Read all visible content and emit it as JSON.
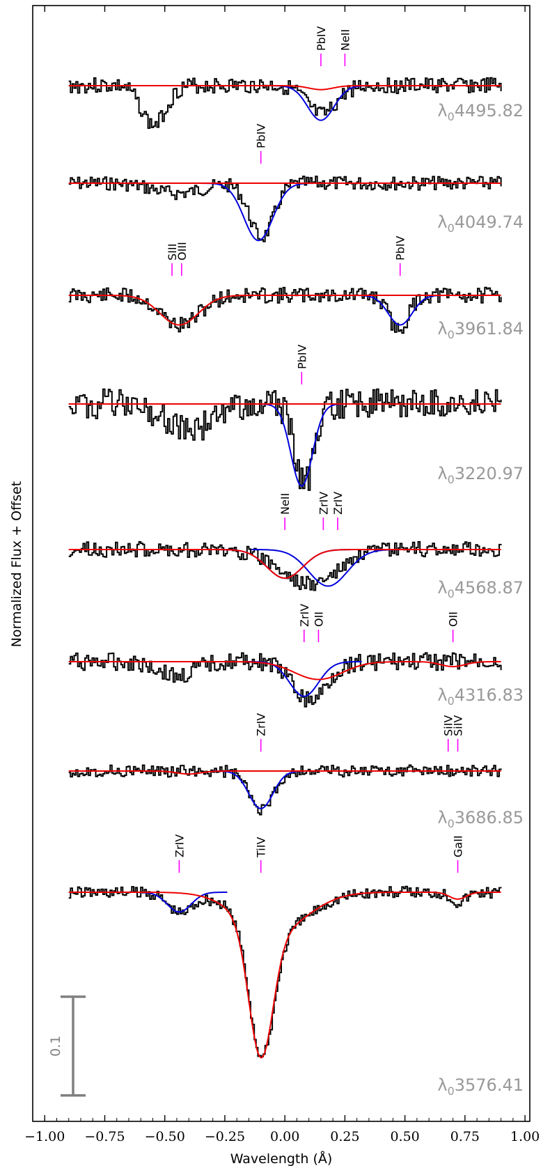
{
  "chart_data": {
    "type": "line",
    "xlabel": "Wavelength (Å)",
    "ylabel": "Normalized Flux + Offset",
    "xlim": [
      -1.05,
      1.02
    ],
    "x_ticks": [
      "−1.00",
      "−0.75",
      "−0.50",
      "−0.25",
      "0.00",
      "0.25",
      "0.50",
      "0.75",
      "1.00"
    ],
    "x_tick_values": [
      -1.0,
      -0.75,
      -0.5,
      -0.25,
      0.0,
      0.25,
      0.5,
      0.75,
      1.0
    ],
    "scale_bar_label": "0.1",
    "scale_bar_size": 0.1,
    "colors": {
      "observed": "#000000",
      "blend_fit": "#0000dd",
      "model": "#ee0000",
      "line_marker": "#ff00ff",
      "label_gray": "#999999",
      "scale_bar": "#808080"
    },
    "series": [
      {
        "label": "λ04495.82",
        "label_prefix": "λ",
        "label_sub": "0",
        "label_value": "4495.82",
        "markers": [
          {
            "ion": "PbIV",
            "x": 0.15
          },
          {
            "ion": "NeII",
            "x": 0.25
          }
        ],
        "model_components": [
          {
            "center": 0.15,
            "depth": 0.035,
            "sigma": 0.055,
            "color": "blue"
          }
        ],
        "red_dips": [
          {
            "center": 0.15,
            "depth": 0.004,
            "sigma": 0.05
          }
        ],
        "data_dips": [
          {
            "center": -0.55,
            "depth": 0.04,
            "sigma": 0.05
          },
          {
            "center": 0.15,
            "depth": 0.03,
            "sigma": 0.06
          }
        ],
        "noise": 0.008,
        "seed": 3
      },
      {
        "label": "λ04049.74",
        "label_prefix": "λ",
        "label_sub": "0",
        "label_value": "4049.74",
        "markers": [
          {
            "ion": "PbIV",
            "x": -0.1
          }
        ],
        "model_components": [
          {
            "center": -0.11,
            "depth": 0.058,
            "sigma": 0.06,
            "color": "blue"
          }
        ],
        "red_dips": [],
        "data_dips": [
          {
            "center": -0.1,
            "depth": 0.055,
            "sigma": 0.05
          },
          {
            "center": -0.45,
            "depth": 0.01,
            "sigma": 0.1
          }
        ],
        "noise": 0.007,
        "seed": 7
      },
      {
        "label": "λ03961.84",
        "label_prefix": "λ",
        "label_sub": "0",
        "label_value": "3961.84",
        "markers": [
          {
            "ion": "SIII",
            "x": -0.47
          },
          {
            "ion": "OIII",
            "x": -0.43
          },
          {
            "ion": "PbIV",
            "x": 0.48
          }
        ],
        "model_components": [
          {
            "center": 0.48,
            "depth": 0.03,
            "sigma": 0.05,
            "color": "blue"
          }
        ],
        "red_dips": [
          {
            "center": -0.44,
            "depth": 0.03,
            "sigma": 0.08
          }
        ],
        "data_dips": [
          {
            "center": -0.44,
            "depth": 0.03,
            "sigma": 0.08
          },
          {
            "center": 0.47,
            "depth": 0.035,
            "sigma": 0.04
          }
        ],
        "noise": 0.008,
        "seed": 11
      },
      {
        "label": "λ03220.97",
        "label_prefix": "λ",
        "label_sub": "0",
        "label_value": "3220.97",
        "markers": [
          {
            "ion": "PbIV",
            "x": 0.07
          }
        ],
        "model_components": [
          {
            "center": 0.07,
            "depth": 0.083,
            "sigma": 0.045,
            "color": "blue"
          }
        ],
        "red_dips": [],
        "data_dips": [
          {
            "center": 0.08,
            "depth": 0.08,
            "sigma": 0.04
          },
          {
            "center": -0.4,
            "depth": 0.025,
            "sigma": 0.1
          }
        ],
        "noise": 0.015,
        "seed": 19
      },
      {
        "label": "λ04568.87",
        "label_prefix": "λ",
        "label_sub": "0",
        "label_value": "4568.87",
        "markers": [
          {
            "ion": "NeII",
            "x": 0.0
          },
          {
            "ion": "ZrIV",
            "x": 0.16
          },
          {
            "ion": "ZrIV",
            "x": 0.22
          }
        ],
        "model_components": [
          {
            "center": 0.0,
            "depth": 0.029,
            "sigma": 0.075,
            "color": "blue"
          },
          {
            "center": 0.18,
            "depth": 0.037,
            "sigma": 0.08,
            "color": "blue"
          }
        ],
        "red_dips": [
          {
            "center": 0.0,
            "depth": 0.029,
            "sigma": 0.075
          }
        ],
        "data_dips": [
          {
            "center": 0.1,
            "depth": 0.035,
            "sigma": 0.12
          }
        ],
        "noise": 0.008,
        "seed": 23
      },
      {
        "label": "λ04316.83",
        "label_prefix": "λ",
        "label_sub": "0",
        "label_value": "4316.83",
        "markers": [
          {
            "ion": "ZrIV",
            "x": 0.08
          },
          {
            "ion": "OII",
            "x": 0.14
          },
          {
            "ion": "OII",
            "x": 0.7
          }
        ],
        "model_components": [
          {
            "center": 0.08,
            "depth": 0.035,
            "sigma": 0.06,
            "color": "blue"
          }
        ],
        "red_dips": [
          {
            "center": 0.14,
            "depth": 0.018,
            "sigma": 0.1
          },
          {
            "center": 0.7,
            "depth": 0.005,
            "sigma": 0.05
          }
        ],
        "data_dips": [
          {
            "center": 0.1,
            "depth": 0.04,
            "sigma": 0.07
          },
          {
            "center": -0.45,
            "depth": 0.015,
            "sigma": 0.07
          }
        ],
        "noise": 0.009,
        "seed": 31
      },
      {
        "label": "λ03686.85",
        "label_prefix": "λ",
        "label_sub": "0",
        "label_value": "3686.85",
        "markers": [
          {
            "ion": "ZrIV",
            "x": -0.1
          },
          {
            "ion": "SiIV",
            "x": 0.68
          },
          {
            "ion": "SiIV",
            "x": 0.72
          }
        ],
        "model_components": [
          {
            "center": -0.1,
            "depth": 0.038,
            "sigma": 0.05,
            "color": "blue"
          }
        ],
        "red_dips": [
          {
            "center": -0.4,
            "depth": 0.003,
            "sigma": 0.05
          }
        ],
        "data_dips": [
          {
            "center": -0.1,
            "depth": 0.04,
            "sigma": 0.05
          }
        ],
        "noise": 0.006,
        "seed": 37
      },
      {
        "label": "λ03576.41",
        "label_prefix": "λ",
        "label_sub": "0",
        "label_value": "3576.41",
        "markers": [
          {
            "ion": "ZrIV",
            "x": -0.44
          },
          {
            "ion": "TiIV",
            "x": -0.1
          },
          {
            "ion": "GaII",
            "x": 0.72
          }
        ],
        "model_components": [
          {
            "center": -0.44,
            "depth": 0.02,
            "sigma": 0.05,
            "color": "blue"
          }
        ],
        "red_dips": [
          {
            "center": -0.1,
            "depth": 0.13,
            "sigma": 0.05
          },
          {
            "center": -0.05,
            "depth": 0.04,
            "sigma": 0.14
          },
          {
            "center": 0.72,
            "depth": 0.007,
            "sigma": 0.035
          }
        ],
        "data_dips": [
          {
            "center": -0.1,
            "depth": 0.13,
            "sigma": 0.05
          },
          {
            "center": -0.05,
            "depth": 0.04,
            "sigma": 0.14
          },
          {
            "center": -0.44,
            "depth": 0.02,
            "sigma": 0.05
          },
          {
            "center": 0.72,
            "depth": 0.01,
            "sigma": 0.03
          }
        ],
        "noise": 0.006,
        "seed": 41
      }
    ]
  }
}
